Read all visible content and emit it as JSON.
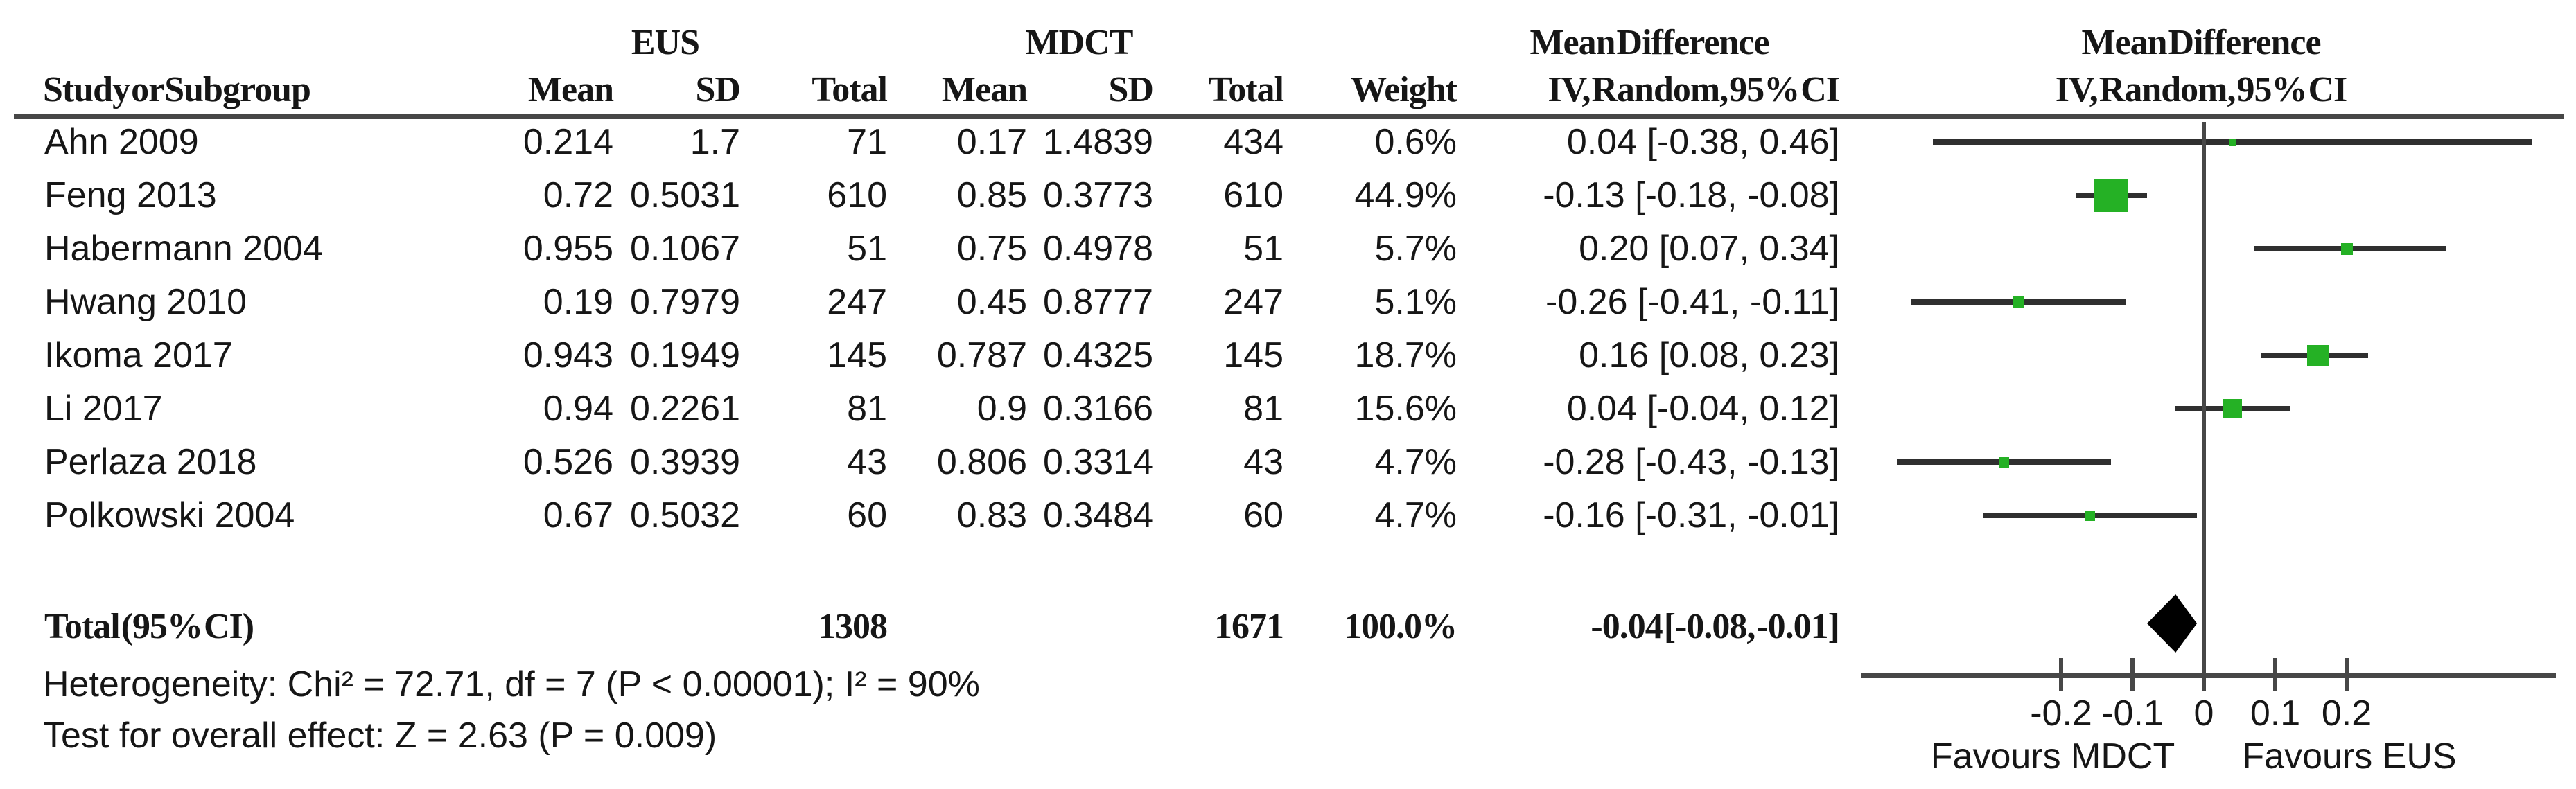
{
  "table": {
    "group_headers": {
      "eus": "EUS",
      "mdct": "MDCT",
      "md_left": "Mean Difference",
      "md_right": "Mean Difference"
    },
    "col_headers": {
      "study": "Study or Subgroup",
      "mean1": "Mean",
      "sd1": "SD",
      "total1": "Total",
      "mean2": "Mean",
      "sd2": "SD",
      "total2": "Total",
      "weight": "Weight",
      "ci": "IV, Random, 95% CI",
      "ci_right": "IV, Random, 95% CI"
    },
    "studies": [
      {
        "name": "Ahn 2009",
        "eus_mean": "0.214",
        "eus_sd": "1.7",
        "eus_total": "71",
        "mdct_mean": "0.17",
        "mdct_sd": "1.4839",
        "mdct_total": "434",
        "weight": "0.6%",
        "ci": "0.04 [-0.38, 0.46]",
        "est": 0.04,
        "lo": -0.38,
        "hi": 0.46,
        "weight_pct": 0.6
      },
      {
        "name": "Feng 2013",
        "eus_mean": "0.72",
        "eus_sd": "0.5031",
        "eus_total": "610",
        "mdct_mean": "0.85",
        "mdct_sd": "0.3773",
        "mdct_total": "610",
        "weight": "44.9%",
        "ci": "-0.13 [-0.18, -0.08]",
        "est": -0.13,
        "lo": -0.18,
        "hi": -0.08,
        "weight_pct": 44.9
      },
      {
        "name": "Habermann 2004",
        "eus_mean": "0.955",
        "eus_sd": "0.1067",
        "eus_total": "51",
        "mdct_mean": "0.75",
        "mdct_sd": "0.4978",
        "mdct_total": "51",
        "weight": "5.7%",
        "ci": "0.20 [0.07, 0.34]",
        "est": 0.2,
        "lo": 0.07,
        "hi": 0.34,
        "weight_pct": 5.7
      },
      {
        "name": "Hwang 2010",
        "eus_mean": "0.19",
        "eus_sd": "0.7979",
        "eus_total": "247",
        "mdct_mean": "0.45",
        "mdct_sd": "0.8777",
        "mdct_total": "247",
        "weight": "5.1%",
        "ci": "-0.26 [-0.41, -0.11]",
        "est": -0.26,
        "lo": -0.41,
        "hi": -0.11,
        "weight_pct": 5.1
      },
      {
        "name": "Ikoma 2017",
        "eus_mean": "0.943",
        "eus_sd": "0.1949",
        "eus_total": "145",
        "mdct_mean": "0.787",
        "mdct_sd": "0.4325",
        "mdct_total": "145",
        "weight": "18.7%",
        "ci": "0.16 [0.08, 0.23]",
        "est": 0.16,
        "lo": 0.08,
        "hi": 0.23,
        "weight_pct": 18.7
      },
      {
        "name": "Li 2017",
        "eus_mean": "0.94",
        "eus_sd": "0.2261",
        "eus_total": "81",
        "mdct_mean": "0.9",
        "mdct_sd": "0.3166",
        "mdct_total": "81",
        "weight": "15.6%",
        "ci": "0.04 [-0.04, 0.12]",
        "est": 0.04,
        "lo": -0.04,
        "hi": 0.12,
        "weight_pct": 15.6
      },
      {
        "name": "Perlaza 2018",
        "eus_mean": "0.526",
        "eus_sd": "0.3939",
        "eus_total": "43",
        "mdct_mean": "0.806",
        "mdct_sd": "0.3314",
        "mdct_total": "43",
        "weight": "4.7%",
        "ci": "-0.28 [-0.43, -0.13]",
        "est": -0.28,
        "lo": -0.43,
        "hi": -0.13,
        "weight_pct": 4.7
      },
      {
        "name": "Polkowski 2004",
        "eus_mean": "0.67",
        "eus_sd": "0.5032",
        "eus_total": "60",
        "mdct_mean": "0.83",
        "mdct_sd": "0.3484",
        "mdct_total": "60",
        "weight": "4.7%",
        "ci": "-0.16 [-0.31, -0.01]",
        "est": -0.16,
        "lo": -0.31,
        "hi": -0.01,
        "weight_pct": 4.7
      }
    ],
    "total_row": {
      "label": "Total (95% CI)",
      "eus_total": "1308",
      "mdct_total": "1671",
      "weight": "100.0%",
      "ci": "-0.04 [-0.08, -0.01]",
      "est": -0.04,
      "lo": -0.08,
      "hi": -0.01
    },
    "footer": {
      "heterogeneity": "Heterogeneity: Chi² = 72.71, df = 7 (P < 0.00001); I² = 90%",
      "overall_effect": "Test for overall effect: Z = 2.63 (P = 0.009)"
    }
  },
  "axis": {
    "tick_values": [
      -0.2,
      -0.1,
      0,
      0.1,
      0.2
    ],
    "tick_labels": [
      "-0.2",
      "-0.1",
      "0",
      "0.1",
      "0.2"
    ],
    "favours_left": "Favours MDCT",
    "favours_right": "Favours EUS"
  },
  "colors": {
    "marker_green": "#25b125",
    "diamond_black": "#000000",
    "rule_gray": "#474747",
    "whisker_dark": "#2f2f2f",
    "text": "#161616"
  },
  "chart_data": {
    "type": "forest",
    "title": "Mean Difference, IV, Random, 95% CI (EUS vs MDCT)",
    "effect_measure": "Mean Difference",
    "model": "IV, Random, 95% CI",
    "x_ticks": [
      -0.2,
      -0.1,
      0,
      0.1,
      0.2
    ],
    "x_range_shown": [
      -0.48,
      0.49
    ],
    "favours_left": "Favours MDCT",
    "favours_right": "Favours EUS",
    "studies": [
      {
        "name": "Ahn 2009",
        "est": 0.04,
        "lo": -0.38,
        "hi": 0.46,
        "weight_pct": 0.6
      },
      {
        "name": "Feng 2013",
        "est": -0.13,
        "lo": -0.18,
        "hi": -0.08,
        "weight_pct": 44.9
      },
      {
        "name": "Habermann 2004",
        "est": 0.2,
        "lo": 0.07,
        "hi": 0.34,
        "weight_pct": 5.7
      },
      {
        "name": "Hwang 2010",
        "est": -0.26,
        "lo": -0.41,
        "hi": -0.11,
        "weight_pct": 5.1
      },
      {
        "name": "Ikoma 2017",
        "est": 0.16,
        "lo": 0.08,
        "hi": 0.23,
        "weight_pct": 18.7
      },
      {
        "name": "Li 2017",
        "est": 0.04,
        "lo": -0.04,
        "hi": 0.12,
        "weight_pct": 15.6
      },
      {
        "name": "Perlaza 2018",
        "est": -0.28,
        "lo": -0.43,
        "hi": -0.13,
        "weight_pct": 4.7
      },
      {
        "name": "Polkowski 2004",
        "est": -0.16,
        "lo": -0.31,
        "hi": -0.01,
        "weight_pct": 4.7
      }
    ],
    "overall": {
      "label": "Total (95% CI)",
      "est": -0.04,
      "lo": -0.08,
      "hi": -0.01,
      "weight_pct": 100.0,
      "heterogeneity": "Chi² = 72.71, df = 7 (P < 0.00001); I² = 90%",
      "test_overall": "Z = 2.63 (P = 0.009)"
    }
  }
}
